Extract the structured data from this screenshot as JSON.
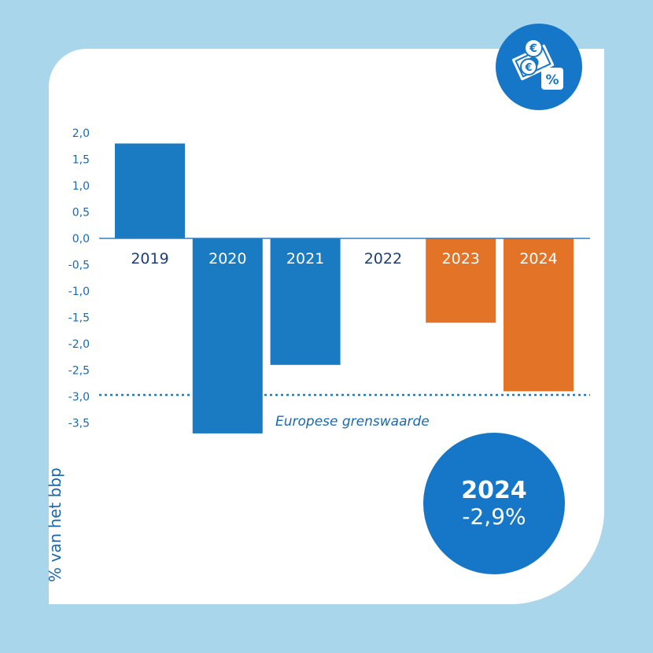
{
  "chart_data": {
    "type": "bar",
    "title": "",
    "ylabel": "% van het bbp",
    "xlabel": "",
    "categories": [
      "2019",
      "2020",
      "2021",
      "2022",
      "2023",
      "2024"
    ],
    "values": [
      1.8,
      -3.7,
      -2.4,
      0.0,
      -1.6,
      -2.9
    ],
    "bar_colors": [
      "#1b7bc2",
      "#1b7bc2",
      "#1b7bc2",
      "#1b7bc2",
      "#e27327",
      "#e27327"
    ],
    "ylim": [
      -3.5,
      2.0
    ],
    "yticks": [
      2.0,
      1.5,
      1.0,
      0.5,
      0.0,
      -0.5,
      -1.0,
      -1.5,
      -2.0,
      -2.5,
      -3.0,
      -3.5
    ],
    "ytick_labels": [
      "2,0",
      "1,5",
      "1,0",
      "0,5",
      "0,0",
      "-0,5",
      "-1,0",
      "-1,5",
      "-2,0",
      "-2,5",
      "-3,0",
      "-3,5"
    ],
    "reference_line": {
      "value": -3.0,
      "label": "Europese grenswaarde",
      "color": "#1b7bc2"
    },
    "highlight": {
      "year": "2024",
      "value": "-2,9%"
    }
  },
  "colors": {
    "background": "#a9d6eb",
    "card": "#ffffff",
    "accent": "#1677c8",
    "text": "#1a69b0"
  },
  "icons": {
    "badge": "currency-percent-icon"
  }
}
